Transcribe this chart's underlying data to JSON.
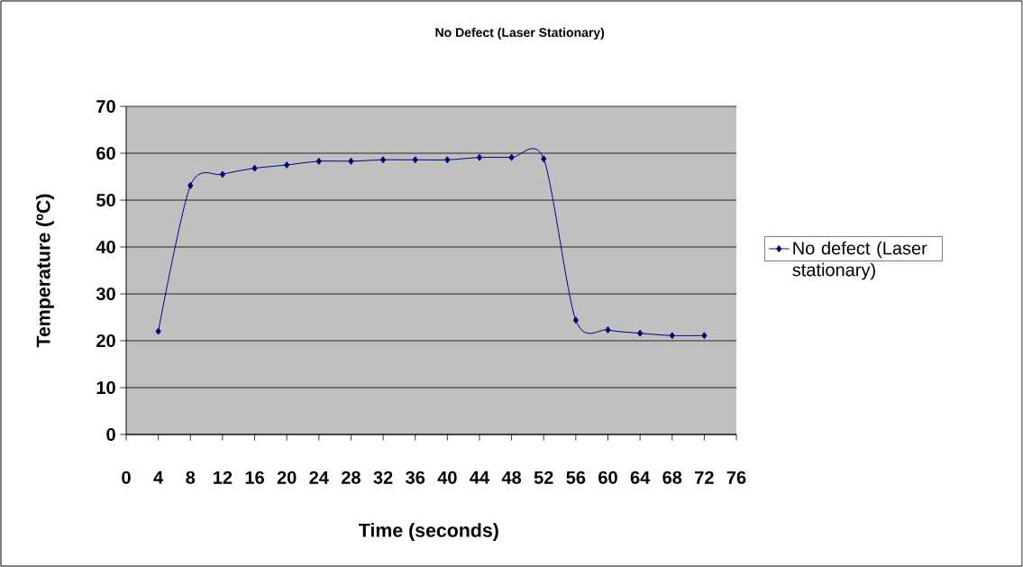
{
  "chart_data": {
    "type": "line",
    "title": "No Defect (Laser Stationary)",
    "xlabel": "Time (seconds)",
    "ylabel": "Temperature (ºC)",
    "categories": [
      "0",
      "4",
      "8",
      "12",
      "16",
      "20",
      "24",
      "28",
      "32",
      "36",
      "40",
      "44",
      "48",
      "52",
      "56",
      "60",
      "64",
      "68",
      "72",
      "76"
    ],
    "series": [
      {
        "name": "No defect (Laser stationary)",
        "color": "#000080",
        "values": [
          null,
          22,
          53.1,
          55.5,
          56.8,
          57.5,
          58.3,
          58.3,
          58.6,
          58.6,
          58.6,
          59.1,
          59.1,
          58.8,
          24.4,
          22.3,
          21.6,
          21.1,
          21.1,
          null
        ]
      }
    ],
    "ylim": [
      0,
      70
    ],
    "yticks": [
      0,
      10,
      20,
      30,
      40,
      50,
      60,
      70
    ],
    "grid": "y",
    "legend": "right",
    "marker": "diamond",
    "line_style": "solid"
  }
}
